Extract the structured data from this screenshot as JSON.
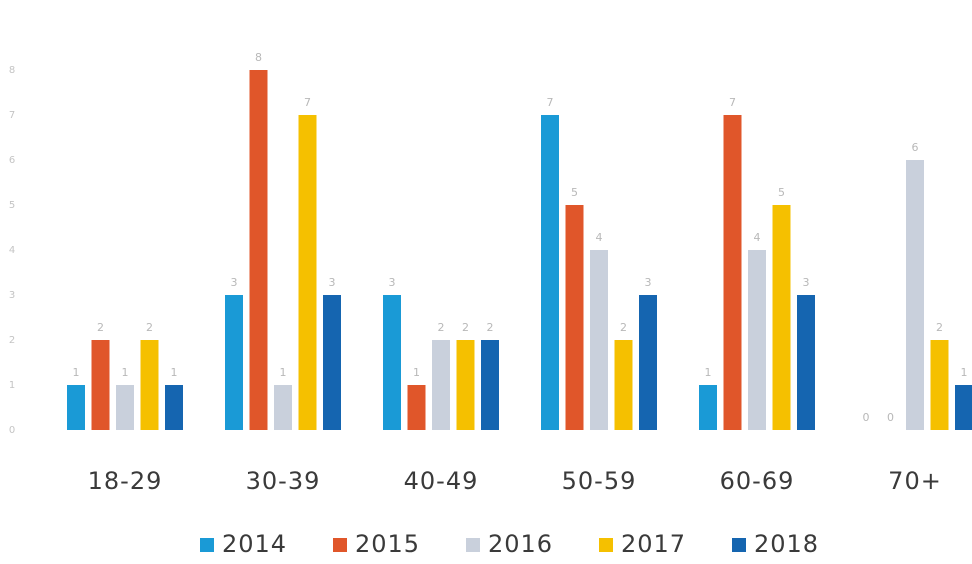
{
  "chart_data": {
    "type": "bar",
    "categories": [
      "18-29",
      "30-39",
      "40-49",
      "50-59",
      "60-69",
      "70+"
    ],
    "series": [
      {
        "name": "2014",
        "color": "#1a9ad6",
        "values": [
          1,
          3,
          3,
          7,
          1,
          0
        ]
      },
      {
        "name": "2015",
        "color": "#e0562a",
        "values": [
          2,
          8,
          1,
          5,
          7,
          0
        ]
      },
      {
        "name": "2016",
        "color": "#c9d0dc",
        "values": [
          1,
          1,
          2,
          4,
          4,
          6
        ]
      },
      {
        "name": "2017",
        "color": "#f5c000",
        "values": [
          2,
          7,
          2,
          2,
          5,
          2
        ]
      },
      {
        "name": "2018",
        "color": "#1565b0",
        "values": [
          1,
          3,
          2,
          3,
          3,
          1
        ]
      }
    ],
    "ylim": [
      0,
      8
    ],
    "yticks": [
      0,
      1,
      2,
      3,
      4,
      5,
      6,
      7,
      8
    ],
    "grid": false,
    "legend": "bottom"
  }
}
